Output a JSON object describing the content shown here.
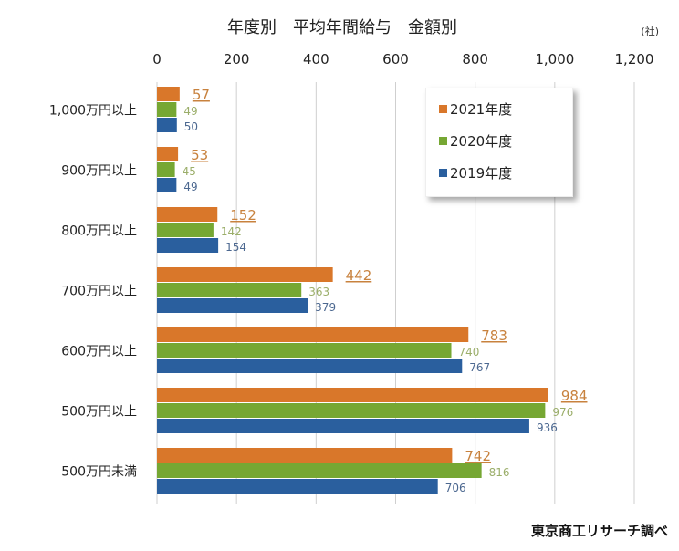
{
  "chart_data": {
    "type": "bar",
    "orientation": "horizontal",
    "title": "年度別　平均年間給与　金額別",
    "unit_label": "(社)",
    "categories": [
      "1,000万円以上",
      "900万円以上",
      "800万円以上",
      "700万円以上",
      "600万円以上",
      "500万円以上",
      "500万円未満"
    ],
    "series": [
      {
        "name": "2021年度",
        "color": "#d9772a",
        "label_color": "#c8823e",
        "values": [
          57,
          53,
          152,
          442,
          783,
          984,
          742
        ]
      },
      {
        "name": "2020年度",
        "color": "#76a733",
        "label_color": "#9bae6a",
        "values": [
          49,
          45,
          142,
          363,
          740,
          976,
          816
        ]
      },
      {
        "name": "2019年度",
        "color": "#2a5f9e",
        "label_color": "#4c6890",
        "values": [
          50,
          49,
          154,
          379,
          767,
          936,
          706
        ]
      }
    ],
    "xlim": [
      0,
      1200
    ],
    "xticks": [
      "0",
      "200",
      "400",
      "600",
      "800",
      "1,000",
      "1,200"
    ],
    "xtick_values": [
      0,
      200,
      400,
      600,
      800,
      1000,
      1200
    ],
    "grid": true,
    "legend_position": "top-right",
    "source": "東京商工リサーチ調べ"
  }
}
